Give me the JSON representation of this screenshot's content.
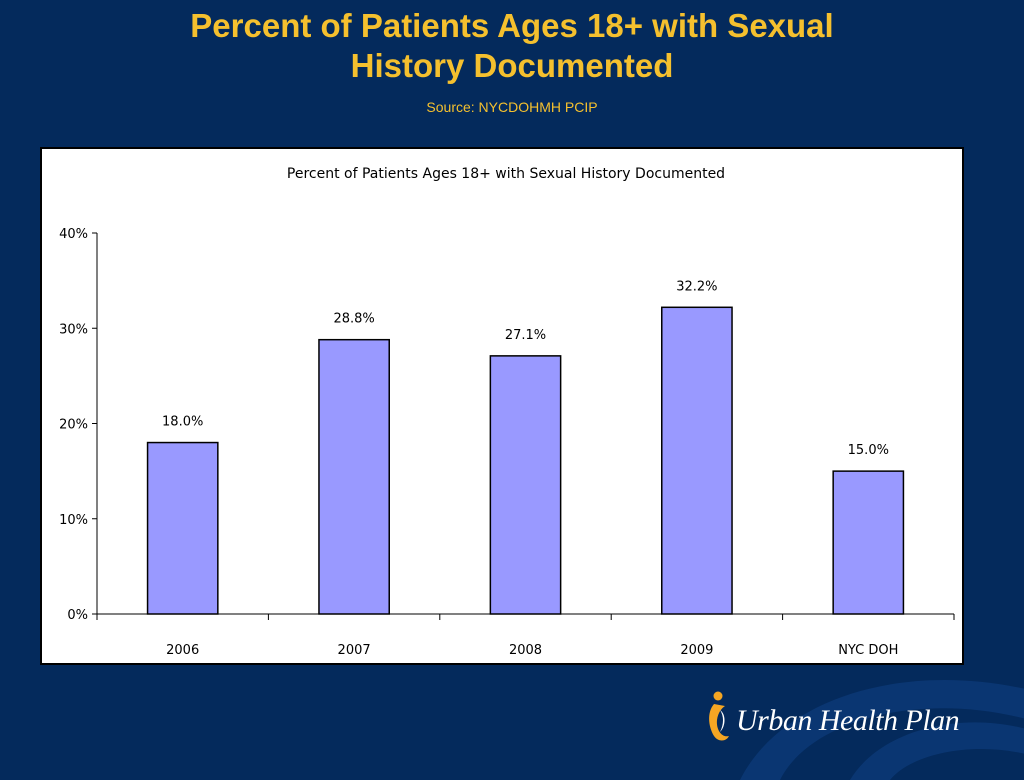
{
  "slide": {
    "title_line1": "Percent of Patients Ages 18+ with Sexual",
    "title_line2": "History Documented",
    "source": "Source: NYCDOHMH PCIP"
  },
  "logo": {
    "text": "Urban Health Plan",
    "icon": "uhp-person-figure-icon"
  },
  "colors": {
    "background": "#042a5c",
    "title": "#f5c02e",
    "bar_fill": "#9999ff",
    "bar_stroke": "#000000",
    "logo_gold": "#f5a623"
  },
  "chart_data": {
    "type": "bar",
    "title": "Percent of Patients Ages 18+ with Sexual History Documented",
    "categories": [
      "2006",
      "2007",
      "2008",
      "2009",
      "NYC DOH"
    ],
    "values": [
      18.0,
      28.8,
      27.1,
      32.2,
      15.0
    ],
    "data_labels": [
      "18.0%",
      "28.8%",
      "27.1%",
      "32.2%",
      "15.0%"
    ],
    "xlabel": "",
    "ylabel": "",
    "ylim": [
      0,
      40
    ],
    "yticks": [
      0,
      10,
      20,
      30,
      40
    ],
    "ytick_labels": [
      "0%",
      "10%",
      "20%",
      "30%",
      "40%"
    ],
    "grid": false,
    "legend": "none"
  }
}
